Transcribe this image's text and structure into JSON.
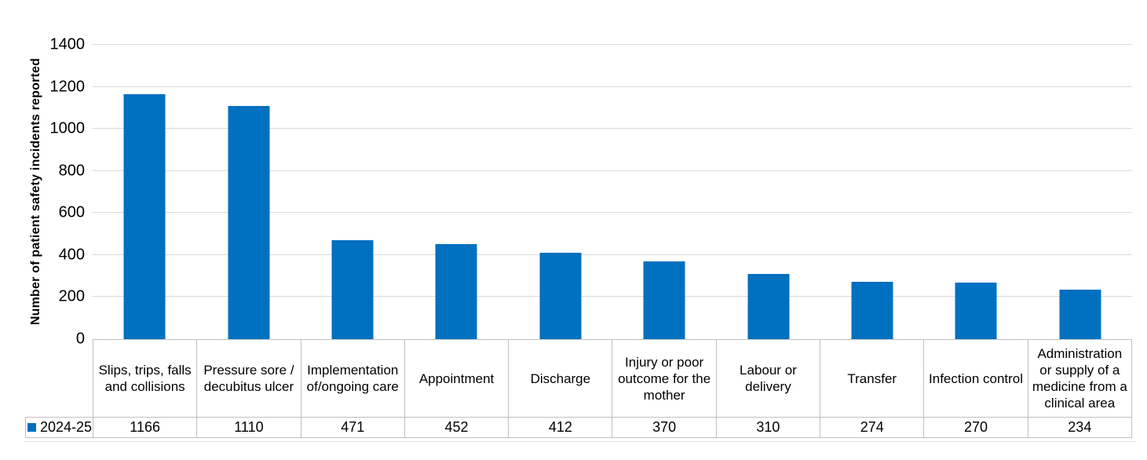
{
  "chart_data": {
    "type": "bar",
    "ylabel": "Number of patient safety incidents reported",
    "xlabel": "",
    "ylim": [
      0,
      1400
    ],
    "yticks": [
      0,
      200,
      400,
      600,
      800,
      1000,
      1200,
      1400
    ],
    "grid": "horizontal",
    "legend_position": "data-table bottom-left",
    "categories": [
      "Slips, trips, falls\nand collisions",
      "Pressure sore /\ndecubitus ulcer",
      "Implementation\nof/ongoing care",
      "Appointment",
      "Discharge",
      "Injury or poor\noutcome for the\nmother",
      "Labour or\ndelivery",
      "Transfer",
      "Infection control",
      "Administration\nor supply of a\nmedicine from a\nclinical area"
    ],
    "series": [
      {
        "name": "2024-25",
        "values": [
          1166,
          1110,
          471,
          452,
          412,
          370,
          310,
          274,
          270,
          234
        ]
      }
    ],
    "colors": {
      "bar": "#0070C0",
      "gridline": "#D9D9D9",
      "table_border": "#BFBFBF",
      "text": "#000000"
    }
  }
}
